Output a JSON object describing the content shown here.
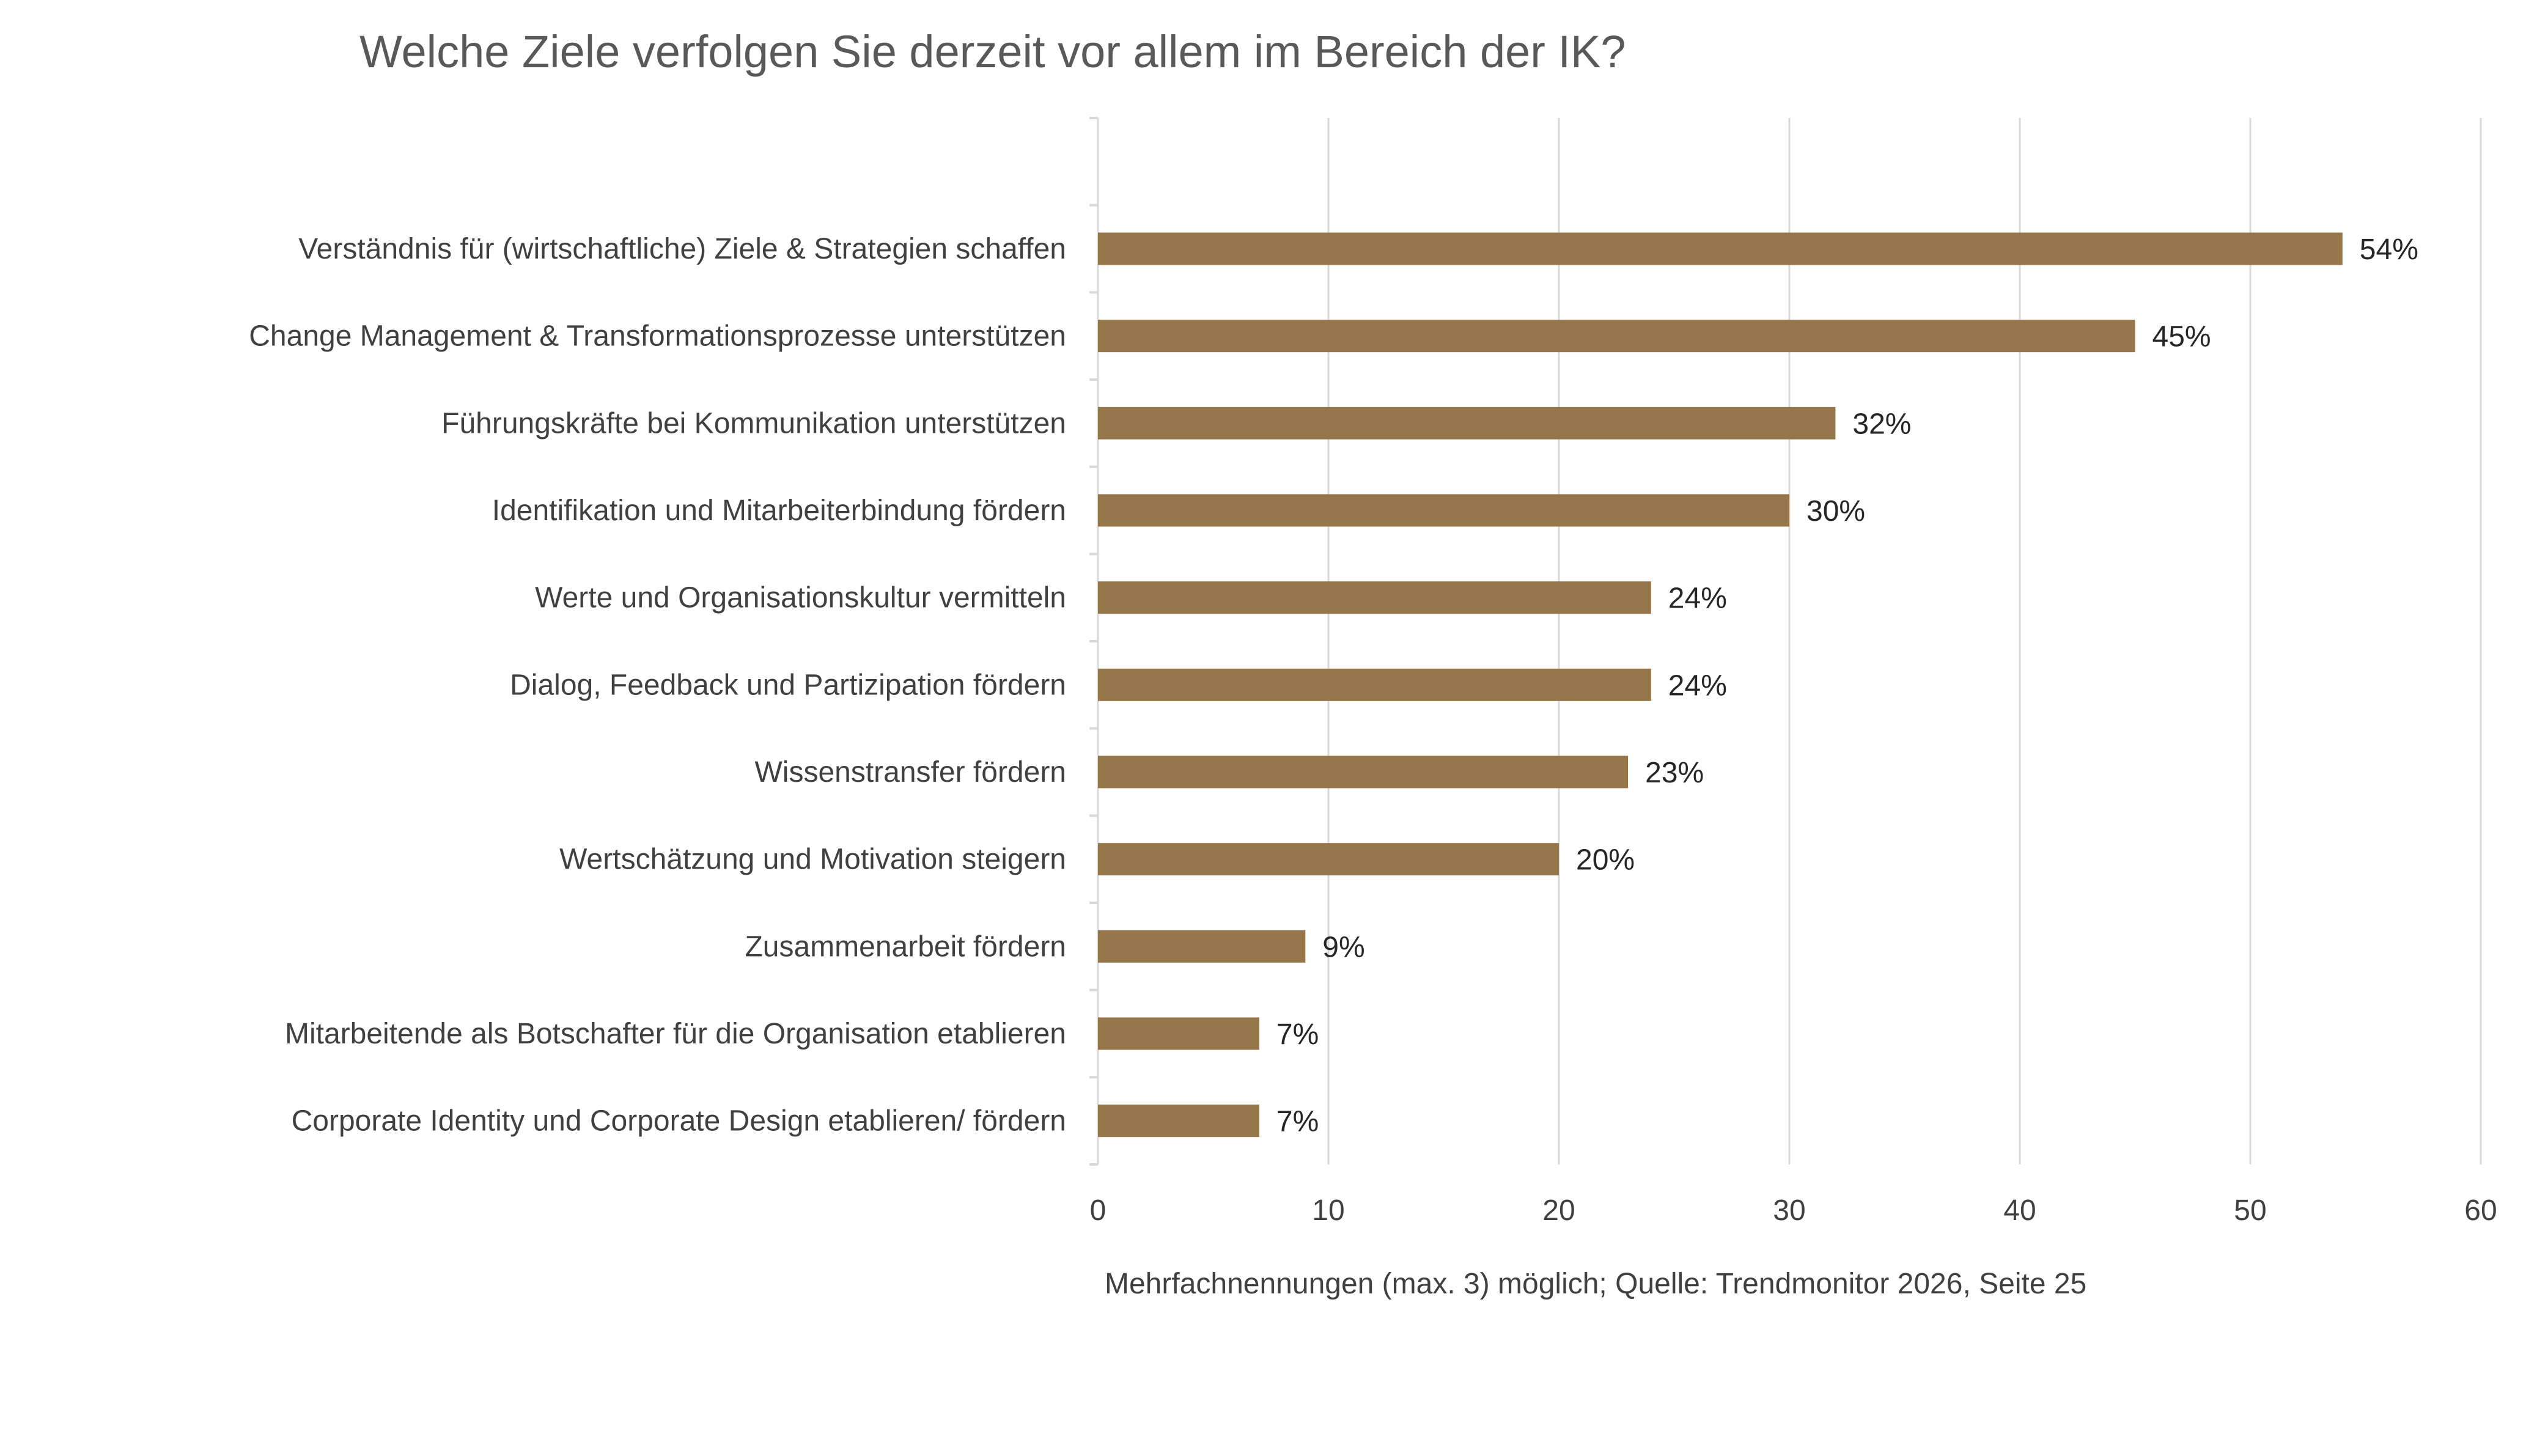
{
  "chart_data": {
    "type": "bar",
    "orientation": "horizontal",
    "title": "Welche Ziele verfolgen Sie derzeit vor allem im Bereich der IK?",
    "categories": [
      "Verständnis für (wirtschaftliche) Ziele & Strategien schaffen",
      "Change Management & Transformationsprozesse unterstützen",
      "Führungskräfte bei Kommunikation unterstützen",
      "Identifikation und Mitarbeiterbindung fördern",
      "Werte und Organisationskultur vermitteln",
      "Dialog, Feedback und Partizipation fördern",
      "Wissenstransfer fördern",
      "Wertschätzung und Motivation steigern",
      "Zusammenarbeit fördern",
      "Mitarbeitende als Botschafter für die Organisation etablieren",
      "Corporate Identity und Corporate Design etablieren/ fördern"
    ],
    "values": [
      54,
      45,
      32,
      30,
      24,
      24,
      23,
      20,
      9,
      7,
      7
    ],
    "data_labels": [
      "54%",
      "45%",
      "32%",
      "30%",
      "24%",
      "24%",
      "23%",
      "20%",
      "9%",
      "7%",
      "7%"
    ],
    "xlim": [
      0,
      60
    ],
    "xticks": [
      "0",
      "10",
      "20",
      "30",
      "40",
      "50",
      "60"
    ],
    "grid": true,
    "bar_color": "#96764B",
    "footnote": "Mehrfachnennungen (max. 3) möglich; Quelle: Trendmonitor 2026, Seite 25"
  }
}
